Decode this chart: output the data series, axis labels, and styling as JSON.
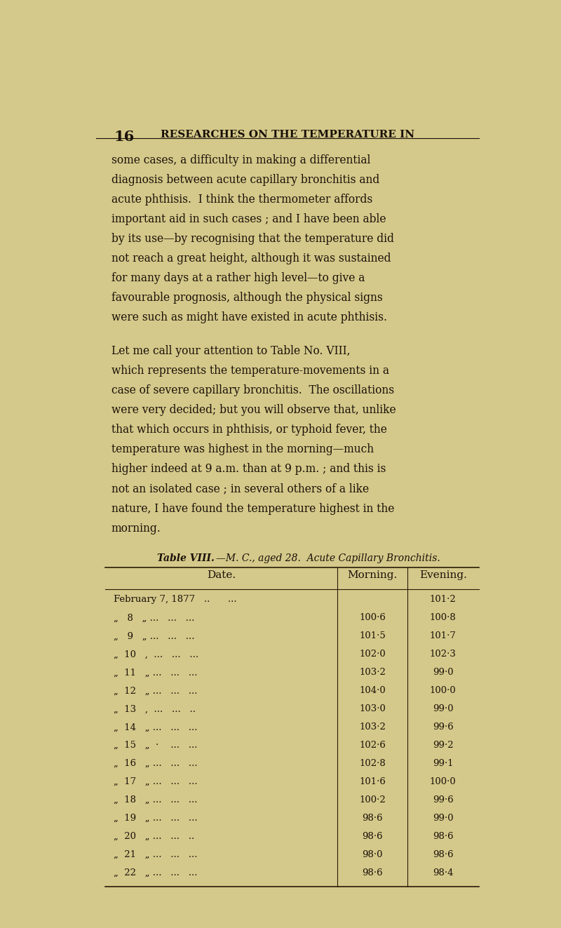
{
  "bg_color": "#d4c98a",
  "page_number": "16",
  "header": "RESEARCHES ON THE TEMPERATURE IN",
  "table_caption_bold": "Table VIII.",
  "table_caption_italic": "—M. C., aged 28.  Acute Capillary Bronchitis.",
  "table_header_date": "Date.",
  "table_header_morning": "Morning.",
  "table_header_evening": "Evening.",
  "text_color": "#1a1008",
  "table_line_color": "#2a1a08",
  "para1_lines": [
    "some cases, a difficulty in making a differential",
    "diagnosis between acute capillary bronchitis and",
    "acute phthisis.  I think the thermometer affords",
    "important aid in such cases ; and I have been able",
    "by its use—by recognising that the temperature did",
    "not reach a great height, although it was sustained",
    "for many days at a rather high level—to give a",
    "favourable prognosis, although the physical signs",
    "were such as might have existed in acute phthisis."
  ],
  "para2_lines": [
    "Let me call your attention to Table No. VIII,",
    "which represents the temperature-movements in a",
    "case of severe capillary bronchitis.  The oscillations",
    "were very decided; but you will observe that, unlike",
    "that which occurs in phthisis, or typhoid fever, the",
    "temperature was highest in the morning—much",
    "higher indeed at 9 a.m. than at 9 p.m. ; and this is",
    "not an isolated case ; in several others of a like",
    "nature, I have found the temperature highest in the",
    "morning."
  ],
  "date_labels": [
    "February 7, 1877   ..      ...",
    "„   8   „ ...   ...   ...",
    "„   9   „ ...   ...   ...",
    "„  10   ,  ...   ...   ...",
    "„  11   „ ...   ...   ...",
    "„  12   „ ...   ...   ...",
    "„  13   ,  ...   ...   ..",
    "„  14   „ ...   ...   ...",
    "„  15   „  ·    ...   ...",
    "„  16   „ ...   ...   ...",
    "„  17   „ ...   ...   ...",
    "„  18   „ ...   ...   ...",
    "„  19   „ ...   ...   ...",
    "„  20   „ ...   ...   ..",
    "„  21   „ ...   ...   ...",
    "„  22   „ ...   ...   ..."
  ],
  "morning_vals": [
    "",
    "100·6",
    "101·5",
    "102·0",
    "103·2",
    "104·0",
    "103·0",
    "103·2",
    "102·6",
    "102·8",
    "101·6",
    "100·2",
    "98·6",
    "98·6",
    "98·0",
    "98·6"
  ],
  "evening_vals": [
    "101·2",
    "100·8",
    "101·7",
    "102·3",
    "99·0",
    "100·0",
    "99·0",
    "99·6",
    "99·2",
    "99·1",
    "100·0",
    "99·6",
    "99·0",
    "98·6",
    "98·6",
    "98·4"
  ]
}
